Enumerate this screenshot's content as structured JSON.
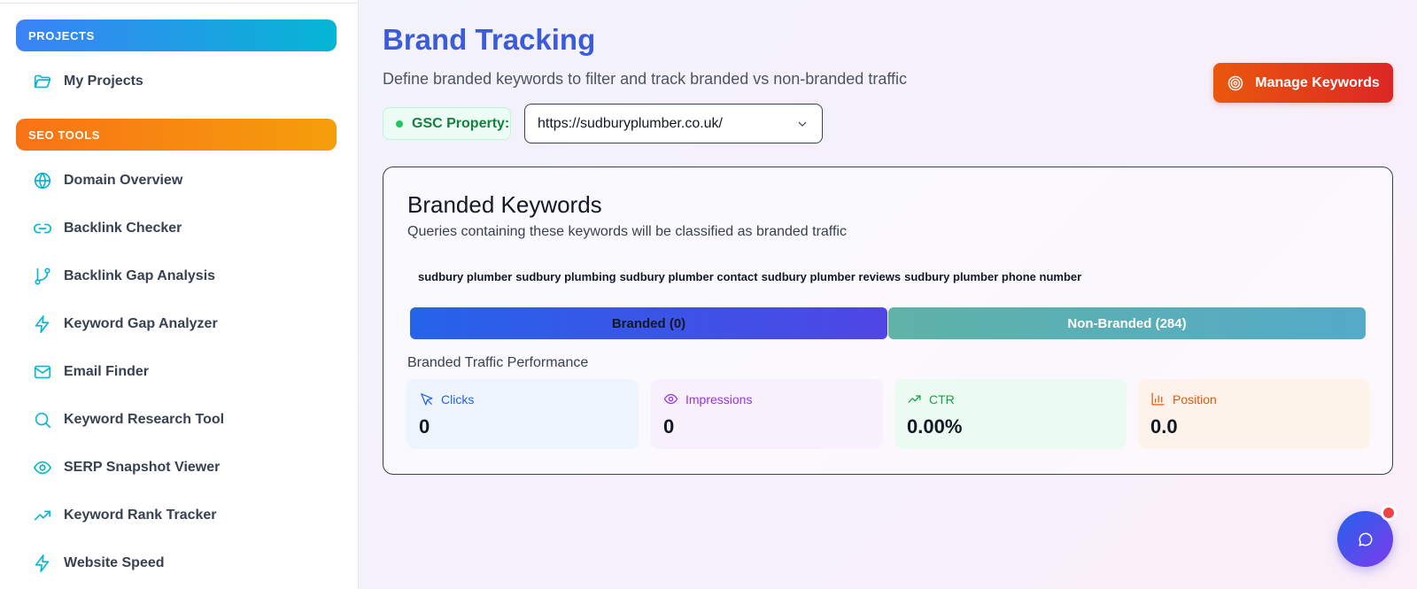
{
  "sidebar": {
    "sections": [
      {
        "label": "PROJECTS",
        "items": [
          {
            "label": "My Projects",
            "icon": "folder-icon"
          }
        ]
      },
      {
        "label": "SEO TOOLS",
        "items": [
          {
            "label": "Domain Overview",
            "icon": "globe-icon"
          },
          {
            "label": "Backlink Checker",
            "icon": "link-icon"
          },
          {
            "label": "Backlink Gap Analysis",
            "icon": "git-branch-icon"
          },
          {
            "label": "Keyword Gap Analyzer",
            "icon": "lightning-icon"
          },
          {
            "label": "Email Finder",
            "icon": "mail-icon"
          },
          {
            "label": "Keyword Research Tool",
            "icon": "search-icon"
          },
          {
            "label": "SERP Snapshot Viewer",
            "icon": "eye-icon"
          },
          {
            "label": "Keyword Rank Tracker",
            "icon": "trending-up-icon"
          },
          {
            "label": "Website Speed",
            "icon": "lightning-icon"
          }
        ]
      }
    ]
  },
  "header": {
    "title": "Brand Tracking",
    "subtitle": "Define branded keywords to filter and track branded vs non-branded traffic",
    "manage_button": "Manage Keywords"
  },
  "gsc": {
    "label": "GSC Property:",
    "selected": "https://sudburyplumber.co.uk/"
  },
  "branded": {
    "title": "Branded Keywords",
    "subtitle": "Queries containing these keywords will be classified as branded traffic",
    "keywords": [
      "sudbury plumber",
      "sudbury plumbing",
      "sudbury plumber contact",
      "sudbury plumber reviews",
      "sudbury plumber phone number"
    ],
    "tabs": {
      "branded": "Branded (0)",
      "non_branded": "Non-Branded (284)"
    },
    "performance_label": "Branded Traffic Performance",
    "stats": [
      {
        "label": "Clicks",
        "value": "0",
        "icon": "cursor-icon"
      },
      {
        "label": "Impressions",
        "value": "0",
        "icon": "eye-icon"
      },
      {
        "label": "CTR",
        "value": "0.00%",
        "icon": "trending-up-icon"
      },
      {
        "label": "Position",
        "value": "0.0",
        "icon": "bar-chart-icon"
      }
    ]
  },
  "colors": {
    "title": "#3b5bdb",
    "projects_pill": "#3b82f6",
    "seo_pill": "#f97316",
    "manage_button": "#ea580c",
    "sidebar_icon": "#06b6d4"
  },
  "chat": {
    "icon": "chat-bubble-icon"
  }
}
